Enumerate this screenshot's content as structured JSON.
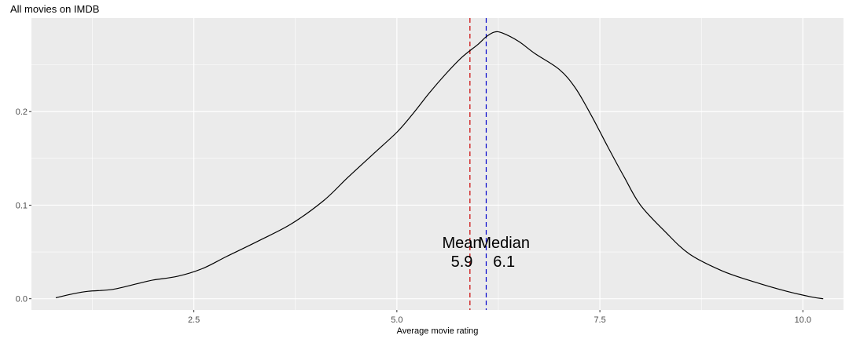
{
  "chart_data": {
    "type": "line",
    "title": "All movies on IMDB",
    "xlabel": "Average movie rating",
    "ylabel": "",
    "xlim": [
      0.5,
      10.5
    ],
    "ylim": [
      -0.012,
      0.3
    ],
    "x_ticks": [
      2.5,
      5.0,
      7.5,
      10.0
    ],
    "x_tick_labels": [
      "2.5",
      "5.0",
      "7.5",
      "10.0"
    ],
    "y_ticks": [
      0.0,
      0.1,
      0.2
    ],
    "y_tick_labels": [
      "0.0",
      "0.1",
      "0.2"
    ],
    "grid": true,
    "series": [
      {
        "color": "#000000",
        "x": [
          0.8,
          1.0,
          1.2,
          1.5,
          1.8,
          2.0,
          2.3,
          2.6,
          2.9,
          3.3,
          3.7,
          4.1,
          4.4,
          4.7,
          5.0,
          5.2,
          5.4,
          5.6,
          5.8,
          6.0,
          6.1,
          6.2,
          6.3,
          6.5,
          6.7,
          7.0,
          7.2,
          7.4,
          7.6,
          7.8,
          8.0,
          8.3,
          8.6,
          9.0,
          9.4,
          9.8,
          10.1,
          10.25
        ],
        "values": [
          0.001,
          0.005,
          0.008,
          0.01,
          0.016,
          0.02,
          0.024,
          0.032,
          0.045,
          0.062,
          0.08,
          0.105,
          0.13,
          0.154,
          0.178,
          0.198,
          0.22,
          0.24,
          0.258,
          0.272,
          0.28,
          0.285,
          0.284,
          0.275,
          0.262,
          0.245,
          0.225,
          0.195,
          0.162,
          0.13,
          0.1,
          0.072,
          0.048,
          0.03,
          0.018,
          0.008,
          0.002,
          0.0
        ]
      }
    ],
    "reference_lines": [
      {
        "x": 5.9,
        "color": "#cc0000",
        "style": "dashed"
      },
      {
        "x": 6.1,
        "color": "#0000cc",
        "style": "dashed"
      }
    ],
    "annotations": [
      {
        "label": "Mean",
        "value": "5.9",
        "x": 5.8,
        "y": 0.041
      },
      {
        "label": "Median",
        "value": "6.1",
        "x": 6.32,
        "y": 0.041
      }
    ]
  }
}
